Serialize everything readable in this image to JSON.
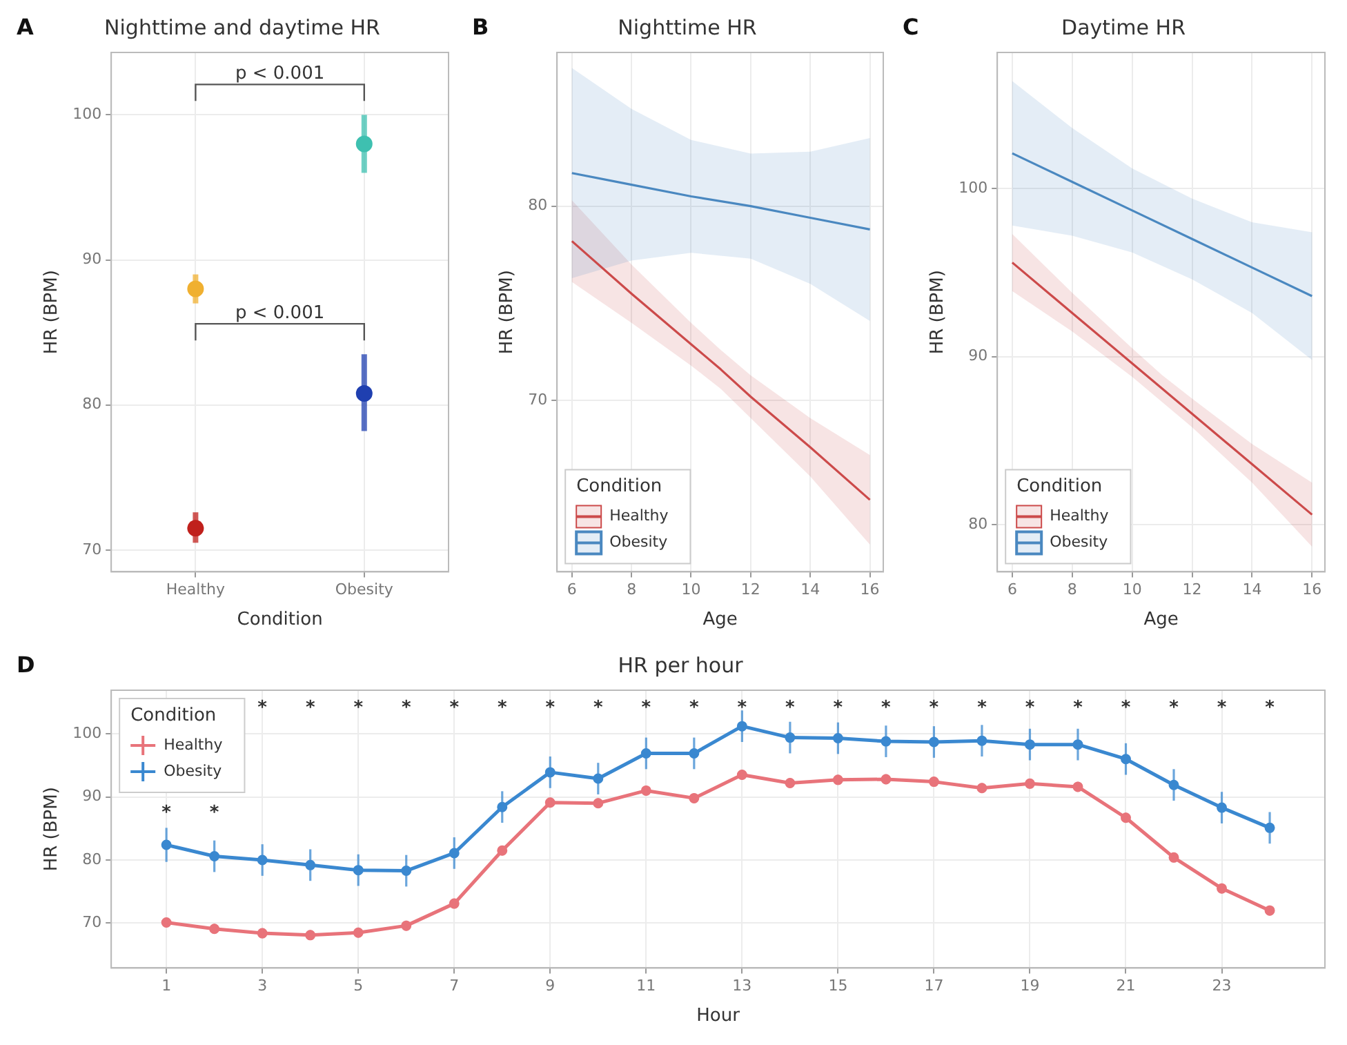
{
  "chart_data": [
    {
      "type": "scatter",
      "title": "Nighttime and daytime HR",
      "xlabel": "Condition",
      "ylabel": "HR (BPM)",
      "categories": [
        "Healthy",
        "Obesity"
      ],
      "ylim": [
        68.5,
        104.3
      ],
      "yticks": [
        70,
        80,
        90,
        100
      ],
      "grid": true,
      "marker": "circle",
      "series": [
        {
          "colors": [
            "#c0201c",
            "#1f3fb0"
          ],
          "values": [
            71.5,
            80.8
          ],
          "errors": [
            [
              70.5,
              72.6
            ],
            [
              78.2,
              83.5
            ]
          ]
        },
        {
          "colors": [
            "#f0b030",
            "#3ec0b0"
          ],
          "values": [
            88.0,
            98.0
          ],
          "errors": [
            [
              87.0,
              89.0
            ],
            [
              96.0,
              100.0
            ]
          ]
        }
      ],
      "annotations": [
        "A",
        "p < 0.001",
        "p < 0.001"
      ]
    },
    {
      "type": "line",
      "title": "Nighttime HR",
      "xlabel": "Age",
      "ylabel": "HR (BPM)",
      "xlim": [
        5.5,
        16.45
      ],
      "xticks": [
        6,
        8,
        10,
        12,
        14,
        16
      ],
      "ylim": [
        61.2,
        87.9
      ],
      "yticks": [
        70,
        80
      ],
      "grid": true,
      "legend": "bottom left",
      "legend_title": "Condition",
      "series": [
        {
          "name": "Healthy",
          "color": "#cc4a4a",
          "x": [
            6,
            8,
            10,
            11,
            12,
            14,
            16
          ],
          "values": [
            78.2,
            75.5,
            72.9,
            71.6,
            70.2,
            67.6,
            64.9
          ],
          "lower": [
            76.1,
            74.0,
            71.8,
            70.6,
            69.1,
            66.1,
            62.6
          ],
          "upper": [
            80.3,
            77.0,
            74.0,
            72.6,
            71.3,
            69.1,
            67.2
          ]
        },
        {
          "name": "Obesity",
          "color": "#4a88c0",
          "x": [
            6,
            8,
            10,
            12,
            14,
            16
          ],
          "values": [
            81.7,
            81.1,
            80.5,
            80.0,
            79.4,
            78.8
          ],
          "lower": [
            76.3,
            77.2,
            77.6,
            77.3,
            76.0,
            74.1
          ],
          "upper": [
            87.1,
            85.0,
            83.4,
            82.7,
            82.8,
            83.5
          ]
        }
      ],
      "annotations": [
        "B"
      ]
    },
    {
      "type": "line",
      "title": "Daytime HR",
      "xlabel": "Age",
      "ylabel": "HR (BPM)",
      "xlim": [
        5.5,
        16.43
      ],
      "xticks": [
        6,
        8,
        10,
        12,
        14,
        16
      ],
      "ylim": [
        77.2,
        108.1
      ],
      "yticks": [
        80,
        90,
        100
      ],
      "grid": true,
      "legend": "bottom left",
      "legend_title": "Condition",
      "series": [
        {
          "name": "Healthy",
          "color": "#cc4a4a",
          "x": [
            6,
            8,
            10,
            11,
            12,
            14,
            16
          ],
          "values": [
            95.6,
            92.6,
            89.6,
            88.1,
            86.6,
            83.6,
            80.6
          ],
          "lower": [
            93.9,
            91.5,
            88.8,
            87.3,
            85.8,
            82.5,
            78.7
          ],
          "upper": [
            97.3,
            93.8,
            90.5,
            88.9,
            87.5,
            84.8,
            82.5
          ]
        },
        {
          "name": "Obesity",
          "color": "#4a88c0",
          "x": [
            6,
            8,
            10,
            12,
            14,
            16
          ],
          "values": [
            102.1,
            100.4,
            98.7,
            97.0,
            95.3,
            93.6
          ],
          "lower": [
            97.8,
            97.2,
            96.2,
            94.6,
            92.6,
            89.8
          ],
          "upper": [
            106.4,
            103.6,
            101.2,
            99.4,
            98.0,
            97.4
          ]
        }
      ],
      "annotations": [
        "C"
      ]
    },
    {
      "type": "line",
      "title": "HR per hour",
      "xlabel": "Hour",
      "ylabel": "HR (BPM)",
      "xlim": [
        -0.15,
        25.15
      ],
      "xticks": [
        1,
        3,
        5,
        7,
        9,
        11,
        13,
        15,
        17,
        19,
        21,
        23
      ],
      "ylim": [
        62.9,
        106.9
      ],
      "yticks": [
        70,
        80,
        90,
        100
      ],
      "grid": true,
      "legend": "top left",
      "legend_title": "Condition",
      "marker": "circle",
      "x": [
        1,
        2,
        3,
        4,
        5,
        6,
        7,
        8,
        9,
        10,
        11,
        12,
        13,
        14,
        15,
        16,
        17,
        18,
        19,
        20,
        21,
        22,
        23,
        24
      ],
      "series": [
        {
          "name": "Healthy",
          "color": "#e8737a",
          "values": [
            70.1,
            69.1,
            68.4,
            68.1,
            68.5,
            69.6,
            73.1,
            81.5,
            89.1,
            89.0,
            91.0,
            89.8,
            93.5,
            92.2,
            92.7,
            92.8,
            92.4,
            91.4,
            92.1,
            91.6,
            86.7,
            80.4,
            75.5,
            72.0
          ],
          "errors": [
            0.8,
            0.8,
            0.8,
            0.8,
            0.8,
            0.8,
            0.8,
            0.8,
            0.8,
            0.8,
            0.8,
            0.8,
            0.8,
            0.8,
            0.8,
            0.8,
            0.8,
            0.8,
            0.8,
            0.8,
            0.8,
            0.8,
            0.8,
            0.8
          ]
        },
        {
          "name": "Obesity",
          "color": "#3a88d0",
          "values": [
            82.4,
            80.6,
            80.0,
            79.2,
            78.4,
            78.3,
            81.1,
            88.4,
            93.9,
            92.9,
            96.9,
            96.9,
            101.2,
            99.4,
            99.3,
            98.8,
            98.7,
            98.9,
            98.3,
            98.3,
            96.0,
            91.9,
            88.3,
            85.1
          ],
          "errors": [
            2.7,
            2.5,
            2.5,
            2.5,
            2.5,
            2.5,
            2.5,
            2.5,
            2.5,
            2.5,
            2.5,
            2.5,
            2.5,
            2.5,
            2.5,
            2.5,
            2.5,
            2.5,
            2.5,
            2.5,
            2.5,
            2.5,
            2.5,
            2.5
          ]
        }
      ],
      "annotations": [
        "D",
        "*",
        "*",
        "*",
        "*",
        "*",
        "*",
        "*",
        "*",
        "*",
        "*",
        "*",
        "*",
        "*",
        "*",
        "*",
        "*",
        "*",
        "*",
        "*",
        "*",
        "*",
        "*",
        "*",
        "*"
      ]
    }
  ]
}
